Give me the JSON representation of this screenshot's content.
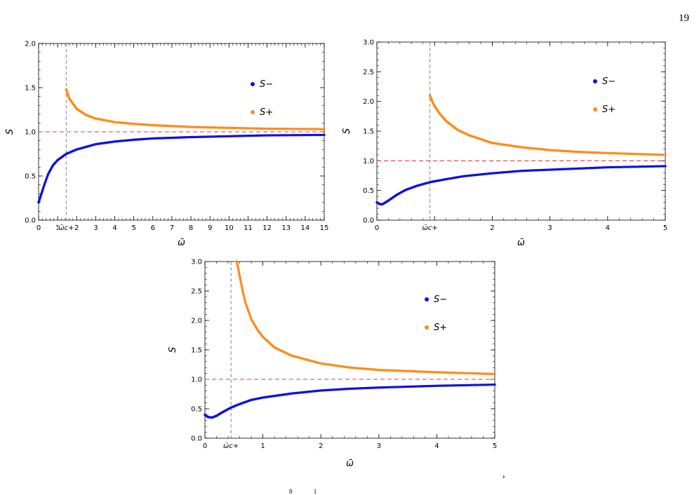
{
  "page": {
    "number": "19",
    "trailing_punct": ",",
    "footnote_fragment": "8 1"
  },
  "chart_data": [
    {
      "type": "line",
      "title": "",
      "xlabel": "ω̄",
      "ylabel": "S",
      "xlim": [
        0,
        15
      ],
      "ylim": [
        0,
        2.0
      ],
      "xticks": [
        {
          "v": 0,
          "label": "0"
        },
        {
          "v": 1,
          "label": "1"
        },
        {
          "v": 2,
          "label": "2"
        },
        {
          "v": 3,
          "label": "3"
        },
        {
          "v": 4,
          "label": "4"
        },
        {
          "v": 5,
          "label": "5"
        },
        {
          "v": 6,
          "label": "6"
        },
        {
          "v": 7,
          "label": "7"
        },
        {
          "v": 8,
          "label": "8"
        },
        {
          "v": 9,
          "label": "9"
        },
        {
          "v": 10,
          "label": "10"
        },
        {
          "v": 11,
          "label": "11"
        },
        {
          "v": 12,
          "label": "12"
        },
        {
          "v": 13,
          "label": "13"
        },
        {
          "v": 14,
          "label": "14"
        },
        {
          "v": 15,
          "label": "15"
        }
      ],
      "yticks": [
        {
          "v": 0,
          "label": "0.0"
        },
        {
          "v": 0.5,
          "label": "0.5"
        },
        {
          "v": 1.0,
          "label": "1.0"
        },
        {
          "v": 1.5,
          "label": "1.5"
        },
        {
          "v": 2.0,
          "label": "2.0"
        }
      ],
      "critical_marker": {
        "x": 1.45,
        "label": "ω̄c+"
      },
      "reference_line": {
        "y": 1.0,
        "color": "#e8383b"
      },
      "legend_position": "top-right",
      "series": [
        {
          "name": "S−",
          "color": "#1010e0",
          "x": [
            0.0,
            0.15,
            0.3,
            0.5,
            0.75,
            1.0,
            1.45,
            2,
            3,
            4,
            5,
            6,
            8,
            10,
            12,
            15
          ],
          "y": [
            0.2,
            0.3,
            0.4,
            0.52,
            0.62,
            0.68,
            0.75,
            0.8,
            0.86,
            0.89,
            0.91,
            0.925,
            0.94,
            0.95,
            0.96,
            0.965
          ]
        },
        {
          "name": "S+",
          "color": "#ff8c1a",
          "x": [
            1.45,
            1.6,
            2,
            2.5,
            3,
            4,
            5,
            6,
            8,
            10,
            12,
            15
          ],
          "y": [
            1.48,
            1.38,
            1.26,
            1.19,
            1.15,
            1.11,
            1.09,
            1.075,
            1.055,
            1.045,
            1.035,
            1.03
          ]
        }
      ]
    },
    {
      "type": "line",
      "title": "",
      "xlabel": "ω̄",
      "ylabel": "S",
      "xlim": [
        0,
        5
      ],
      "ylim": [
        0,
        3.0
      ],
      "xticks": [
        {
          "v": 0,
          "label": "0"
        },
        {
          "v": 1,
          "label": "1"
        },
        {
          "v": 2,
          "label": "2"
        },
        {
          "v": 3,
          "label": "3"
        },
        {
          "v": 4,
          "label": "4"
        },
        {
          "v": 5,
          "label": "5"
        }
      ],
      "yticks": [
        {
          "v": 0,
          "label": "0.0"
        },
        {
          "v": 0.5,
          "label": "0.5"
        },
        {
          "v": 1.0,
          "label": "1.0"
        },
        {
          "v": 1.5,
          "label": "1.5"
        },
        {
          "v": 2.0,
          "label": "2.0"
        },
        {
          "v": 2.5,
          "label": "2.5"
        },
        {
          "v": 3.0,
          "label": "3.0"
        }
      ],
      "critical_marker": {
        "x": 0.92,
        "label": "ω̄c+"
      },
      "reference_line": {
        "y": 1.0,
        "color": "#e8383b"
      },
      "legend_position": "top-right",
      "series": [
        {
          "name": "S−",
          "color": "#1010e0",
          "x": [
            0.0,
            0.05,
            0.1,
            0.2,
            0.35,
            0.5,
            0.7,
            0.92,
            1.2,
            1.5,
            2.0,
            2.5,
            3.0,
            4.0,
            5.0
          ],
          "y": [
            0.3,
            0.27,
            0.27,
            0.33,
            0.43,
            0.51,
            0.58,
            0.64,
            0.69,
            0.74,
            0.79,
            0.83,
            0.85,
            0.89,
            0.91
          ]
        },
        {
          "name": "S+",
          "color": "#ff8c1a",
          "x": [
            0.92,
            0.96,
            1.0,
            1.1,
            1.2,
            1.4,
            1.6,
            2.0,
            2.5,
            3.0,
            3.5,
            4.0,
            5.0
          ],
          "y": [
            2.1,
            2.0,
            1.92,
            1.78,
            1.67,
            1.52,
            1.43,
            1.3,
            1.23,
            1.18,
            1.15,
            1.13,
            1.1
          ]
        }
      ]
    },
    {
      "type": "line",
      "title": "",
      "xlabel": "ω̄",
      "ylabel": "S",
      "xlim": [
        0,
        5
      ],
      "ylim": [
        0,
        3.0
      ],
      "xticks": [
        {
          "v": 0,
          "label": "0"
        },
        {
          "v": 1,
          "label": "1"
        },
        {
          "v": 2,
          "label": "2"
        },
        {
          "v": 3,
          "label": "3"
        },
        {
          "v": 4,
          "label": "4"
        },
        {
          "v": 5,
          "label": "5"
        }
      ],
      "yticks": [
        {
          "v": 0,
          "label": "0.0"
        },
        {
          "v": 0.5,
          "label": "0.5"
        },
        {
          "v": 1.0,
          "label": "1.0"
        },
        {
          "v": 1.5,
          "label": "1.5"
        },
        {
          "v": 2.0,
          "label": "2.0"
        },
        {
          "v": 2.5,
          "label": "2.5"
        },
        {
          "v": 3.0,
          "label": "3.0"
        }
      ],
      "critical_marker": {
        "x": 0.45,
        "label": "ω̄c+"
      },
      "reference_line": {
        "y": 1.0,
        "color": "#e8383b"
      },
      "legend_position": "top-right",
      "series": [
        {
          "name": "S−",
          "color": "#1010e0",
          "x": [
            0.0,
            0.05,
            0.12,
            0.2,
            0.3,
            0.45,
            0.6,
            0.8,
            1.0,
            1.5,
            2.0,
            2.5,
            3.0,
            4.0,
            5.0
          ],
          "y": [
            0.4,
            0.36,
            0.35,
            0.38,
            0.44,
            0.52,
            0.58,
            0.65,
            0.69,
            0.76,
            0.81,
            0.84,
            0.86,
            0.89,
            0.91
          ]
        },
        {
          "name": "S+",
          "color": "#ff8c1a",
          "x": [
            0.55,
            0.6,
            0.65,
            0.7,
            0.8,
            0.9,
            1.0,
            1.2,
            1.5,
            2.0,
            2.5,
            3.0,
            4.0,
            5.0
          ],
          "y": [
            3.0,
            2.75,
            2.5,
            2.3,
            2.02,
            1.85,
            1.72,
            1.54,
            1.4,
            1.27,
            1.2,
            1.16,
            1.12,
            1.09
          ]
        }
      ]
    }
  ]
}
